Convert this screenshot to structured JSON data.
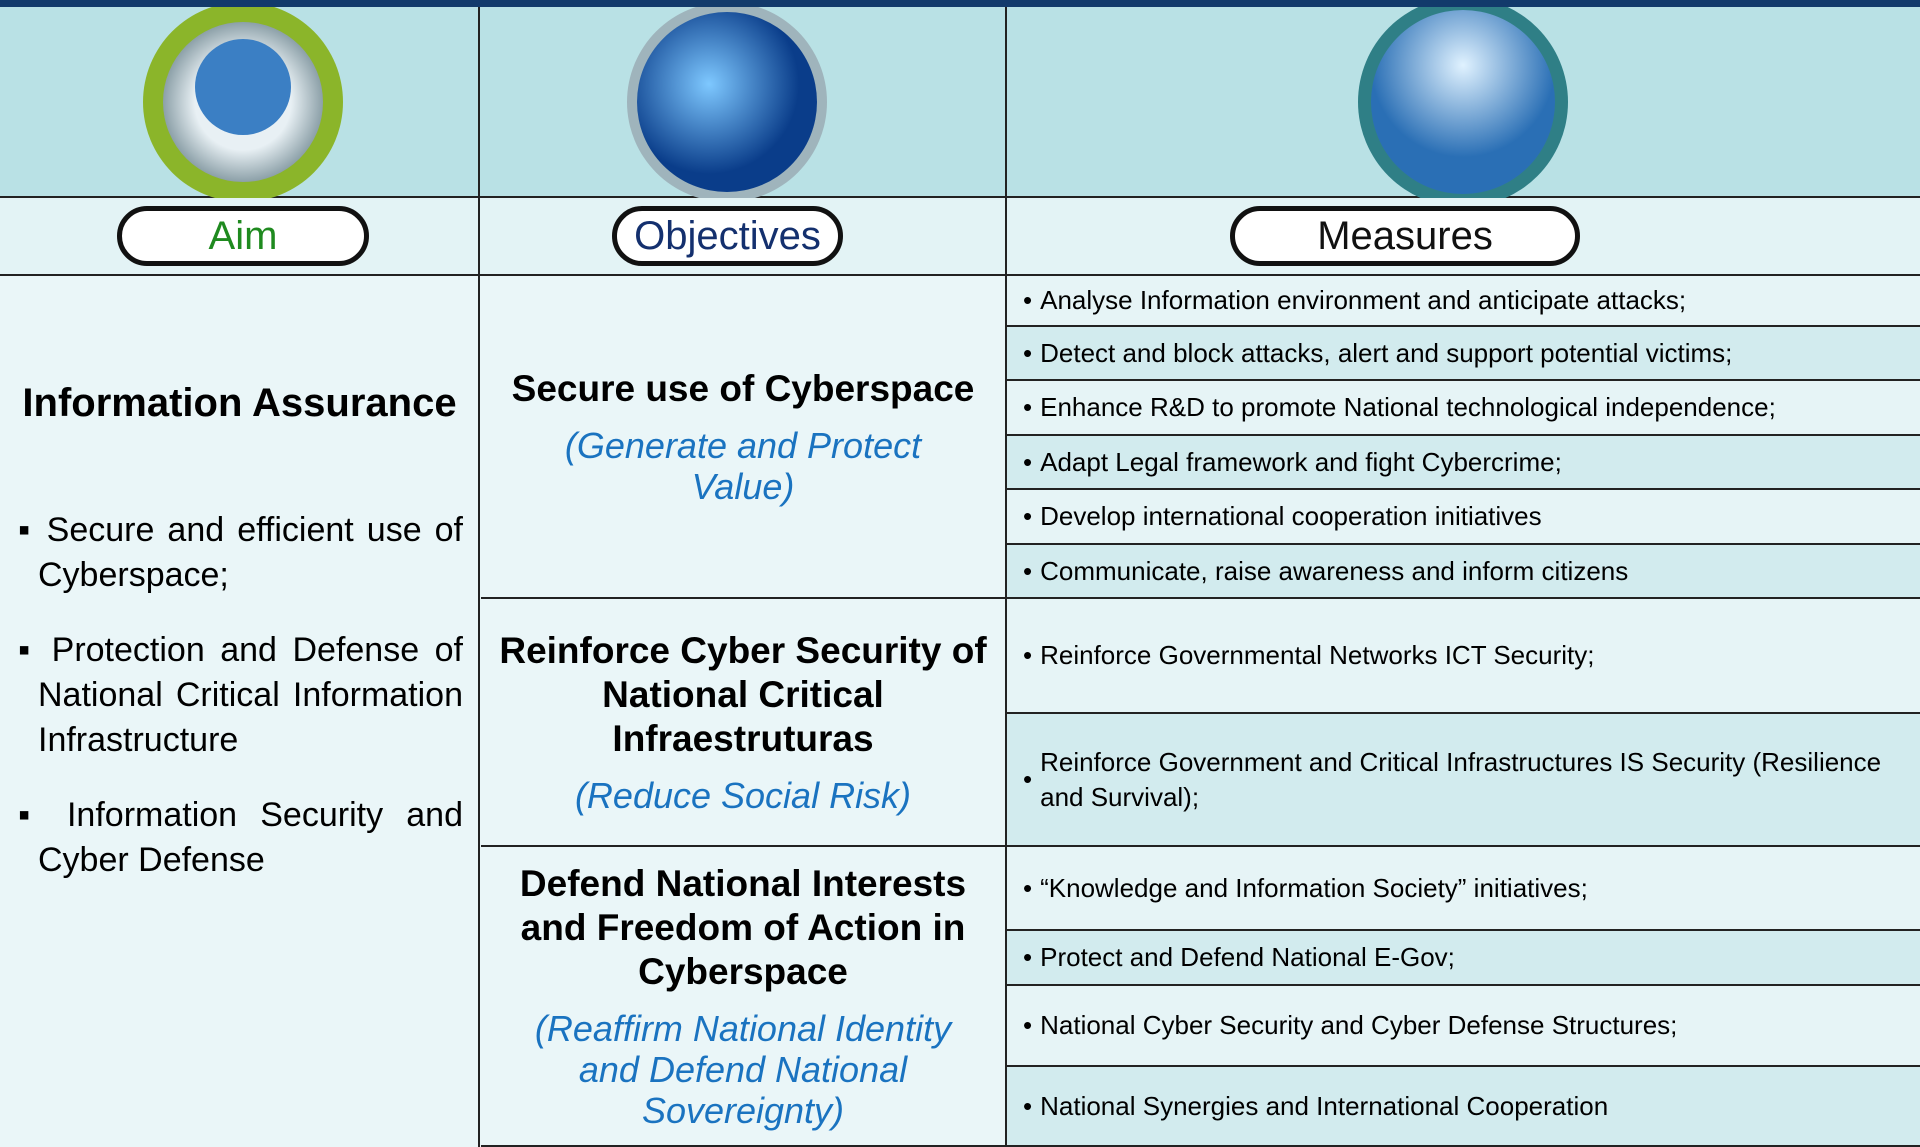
{
  "header": {
    "aim": "Aim",
    "objectives": "Objectives",
    "measures": "Measures"
  },
  "aim": {
    "title": "Information Assurance",
    "items": [
      "Secure and efficient use of Cyberspace;",
      "Protection and Defense of National Critical Information Infrastructure",
      "Information Security and Cyber Defense"
    ]
  },
  "objectives": [
    {
      "title": "Secure use of Cyberspace",
      "subtitle": "(Generate and Protect Value)",
      "measures": [
        "Analyse Information environment and anticipate attacks;",
        "Detect and block attacks, alert and support potential victims;",
        "Enhance R&D to promote National technological independence;",
        "Adapt Legal framework and fight Cybercrime;",
        "Develop international cooperation initiatives",
        "Communicate, raise awareness and inform citizens"
      ]
    },
    {
      "title": "Reinforce Cyber Security of National Critical Infraestruturas",
      "subtitle": "(Reduce Social Risk)",
      "measures": [
        "Reinforce Governmental Networks ICT Security;",
        "Reinforce Government and Critical Infrastructures IS Security (Resilience and Survival);"
      ]
    },
    {
      "title": "Defend National Interests and Freedom of Action in Cyberspace",
      "subtitle": "(Reaffirm National Identity and Defend National Sovereignty)",
      "measures": [
        "“Knowledge and Information Society” initiatives;",
        "Protect and Defend National E-Gov;",
        "National Cyber Security and Cyber Defense Structures;",
        "National Synergies and International Cooperation"
      ]
    }
  ]
}
